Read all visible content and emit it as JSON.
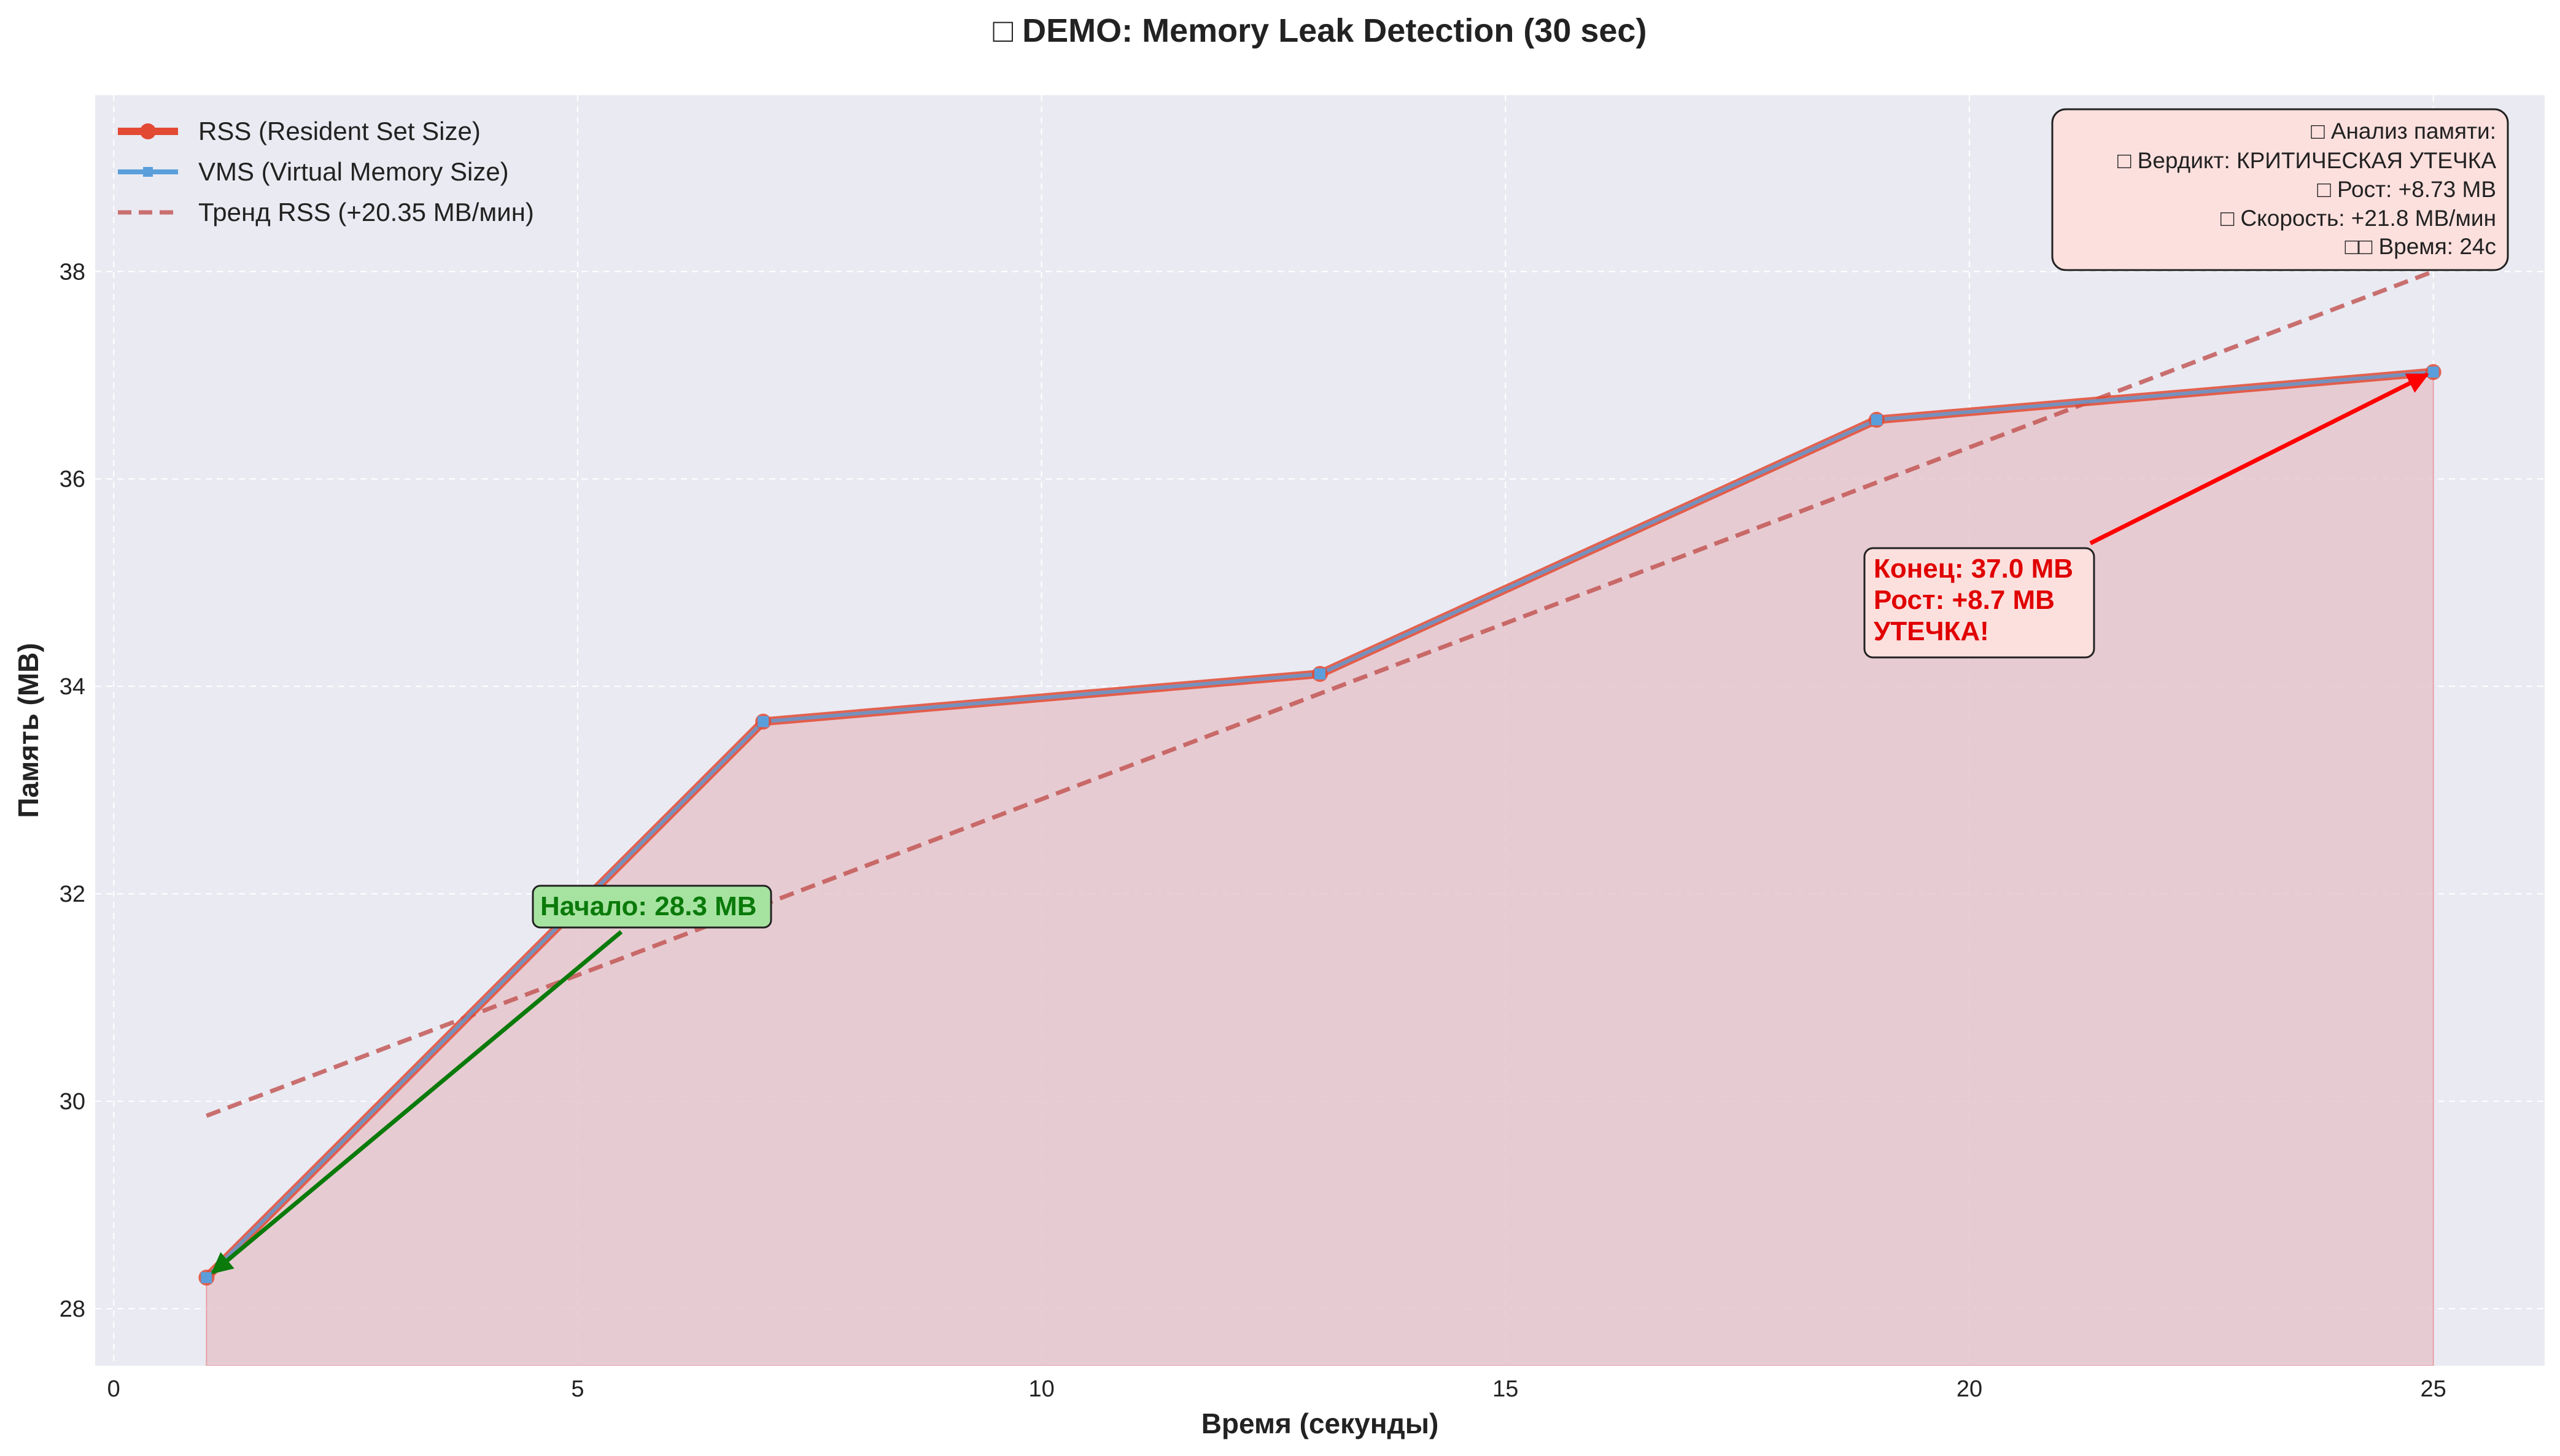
{
  "chart_data": {
    "type": "line",
    "title": "□ DEMO: Memory Leak Detection (30 sec)",
    "xlabel": "Время (секунды)",
    "ylabel": "Память (MB)",
    "xlim": [
      -0.2,
      26.2
    ],
    "ylim": [
      27.45,
      39.7
    ],
    "xticks": [
      0,
      5,
      10,
      15,
      20,
      25
    ],
    "yticks": [
      28,
      30,
      32,
      34,
      36,
      38
    ],
    "grid": true,
    "legend_position": "top-left",
    "x": [
      1,
      7,
      13,
      19,
      25
    ],
    "series": [
      {
        "name": "RSS (Resident Set Size)",
        "values": [
          28.3,
          33.66,
          34.12,
          36.57,
          37.03
        ],
        "color": "#e24a33",
        "marker": "circle"
      },
      {
        "name": "VMS (Virtual Memory Size)",
        "values": [
          28.3,
          33.66,
          34.12,
          36.57,
          37.03
        ],
        "color": "#5a9fdb",
        "marker": "square"
      }
    ],
    "trend": {
      "name": "Тренд RSS (+20.35 MB/мин)",
      "x": [
        1,
        25
      ],
      "values": [
        29.86,
        38.0
      ],
      "color": "#c0504d"
    },
    "annotations": {
      "start": {
        "text": "Начало: 28.3 MB",
        "point": [
          1,
          28.3
        ],
        "color": "#0a7a0a"
      },
      "end": {
        "lines": [
          "Конец: 37.0 MB",
          "Рост: +8.7 MB",
          "УТЕЧКА!"
        ],
        "point": [
          25,
          37.03
        ],
        "color": "#e00000"
      }
    },
    "info_box": {
      "lines": [
        "□ Анализ памяти:",
        "□ Вердикт: КРИТИЧЕСКАЯ УТЕЧКА",
        "□ Рост: +8.73 MB",
        "□ Скорость: +21.8 MB/мин",
        "□□ Время: 24с"
      ],
      "position": "top-right",
      "background": "#fce0de"
    },
    "colors": {
      "plot_bg": "#eaeaf2",
      "fill": "#e6c6cc"
    }
  }
}
